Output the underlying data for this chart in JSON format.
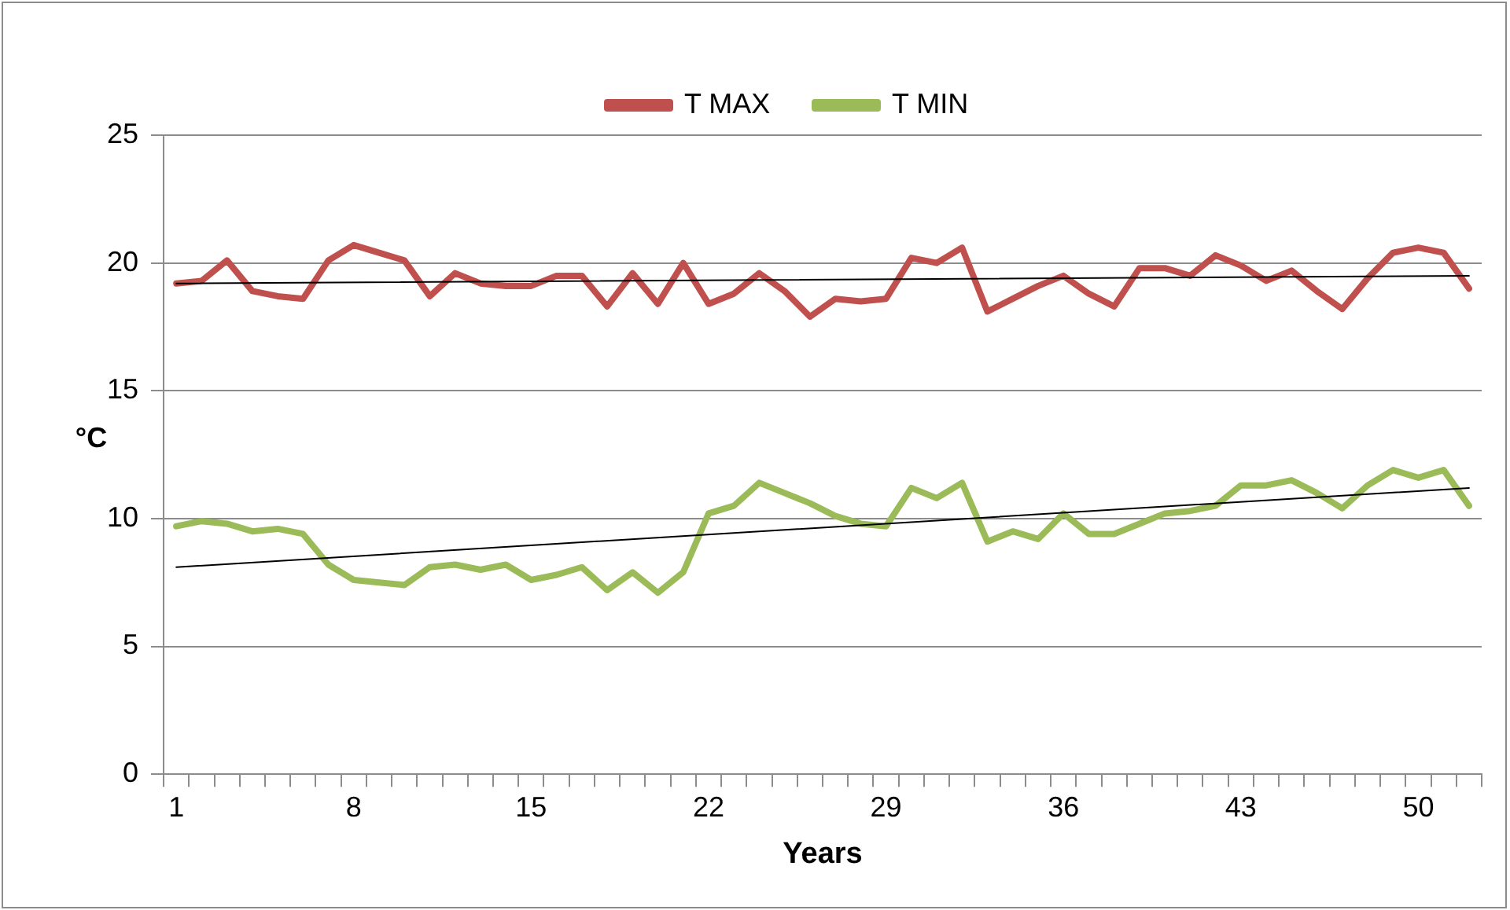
{
  "chart_data": {
    "type": "line",
    "xlabel": "Years",
    "ylabel": "°C",
    "categories": [
      "1",
      null,
      null,
      null,
      null,
      null,
      null,
      "8",
      null,
      null,
      null,
      null,
      null,
      null,
      "15",
      null,
      null,
      null,
      null,
      null,
      null,
      "22",
      null,
      null,
      null,
      null,
      null,
      null,
      "29",
      null,
      null,
      null,
      null,
      null,
      null,
      "36",
      null,
      null,
      null,
      null,
      null,
      null,
      "43",
      null,
      null,
      null,
      null,
      null,
      null,
      "50",
      null,
      null
    ],
    "series": [
      {
        "name": "T MAX",
        "color": "#c0504d",
        "values": [
          19.2,
          19.3,
          20.1,
          18.9,
          18.7,
          18.6,
          20.1,
          20.7,
          20.4,
          20.1,
          18.7,
          19.6,
          19.2,
          19.1,
          19.1,
          19.5,
          19.5,
          18.3,
          19.6,
          18.4,
          20.0,
          18.4,
          18.8,
          19.6,
          18.9,
          17.9,
          18.6,
          18.5,
          18.6,
          20.2,
          20.0,
          20.6,
          18.1,
          18.6,
          19.1,
          19.5,
          18.8,
          18.3,
          19.8,
          19.8,
          19.5,
          20.3,
          19.9,
          19.3,
          19.7,
          18.9,
          18.2,
          19.4,
          20.4,
          20.6,
          20.4,
          19.0
        ]
      },
      {
        "name": "T MIN",
        "color": "#9bbb59",
        "values": [
          9.7,
          9.9,
          9.8,
          9.5,
          9.6,
          9.4,
          8.2,
          7.6,
          7.5,
          7.4,
          8.1,
          8.2,
          8.0,
          8.2,
          7.6,
          7.8,
          8.1,
          7.2,
          7.9,
          7.1,
          7.9,
          10.2,
          10.5,
          11.4,
          11.0,
          10.6,
          10.1,
          9.8,
          9.7,
          11.2,
          10.8,
          11.4,
          9.1,
          9.5,
          9.2,
          10.2,
          9.4,
          9.4,
          9.8,
          10.2,
          10.3,
          10.5,
          11.3,
          11.3,
          11.5,
          11.0,
          10.4,
          11.3,
          11.9,
          11.6,
          11.9,
          10.5
        ]
      },
      {
        "color": "#000000",
        "values": [
          19.2,
          null,
          null,
          null,
          null,
          null,
          null,
          null,
          null,
          null,
          null,
          null,
          null,
          null,
          null,
          null,
          null,
          null,
          null,
          null,
          null,
          null,
          null,
          null,
          null,
          null,
          null,
          null,
          null,
          null,
          null,
          null,
          null,
          null,
          null,
          null,
          null,
          null,
          null,
          null,
          null,
          null,
          null,
          null,
          null,
          null,
          null,
          null,
          null,
          null,
          null,
          19.5
        ]
      },
      {
        "color": "#000000",
        "values": [
          8.1,
          null,
          null,
          null,
          null,
          null,
          null,
          null,
          null,
          null,
          null,
          null,
          null,
          null,
          null,
          null,
          null,
          null,
          null,
          null,
          null,
          null,
          null,
          null,
          null,
          null,
          null,
          null,
          null,
          null,
          null,
          null,
          null,
          null,
          null,
          null,
          null,
          null,
          null,
          null,
          null,
          null,
          null,
          null,
          null,
          null,
          null,
          null,
          null,
          null,
          null,
          11.2
        ]
      }
    ],
    "ylim": [
      0,
      25
    ],
    "yticks": [
      0,
      5,
      10,
      15,
      20,
      25
    ],
    "grid": "y",
    "legend": "top",
    "marker": "none",
    "line_style": "solid"
  }
}
